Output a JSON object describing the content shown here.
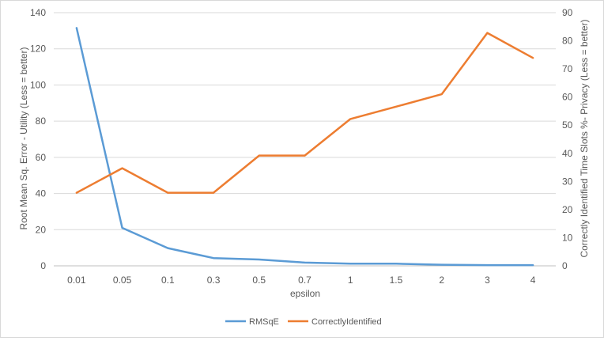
{
  "chart_data": {
    "type": "line",
    "categories": [
      "0.01",
      "0.05",
      "0.1",
      "0.3",
      "0.5",
      "0.7",
      "1",
      "1.5",
      "2",
      "3",
      "4"
    ],
    "xlabel": "epsilon",
    "ylabel": "Root Mean Sq. Error - Utility  (Less = better)",
    "ylabel_right": "Correctly Identified Time Slots %- Privacy  (Less = better)",
    "ylim": [
      0,
      140
    ],
    "ylim_right": [
      0,
      90
    ],
    "yticks": [
      0,
      20,
      40,
      60,
      80,
      100,
      120,
      140
    ],
    "yticks_right": [
      0,
      10,
      20,
      30,
      40,
      50,
      60,
      70,
      80,
      90
    ],
    "grid": true,
    "legend_position": "bottom",
    "series": [
      {
        "name": "RMSqE",
        "axis": "left",
        "color": "#5b9bd5",
        "values": [
          131.5,
          21,
          9.8,
          4.3,
          3.5,
          1.8,
          1.2,
          1.2,
          0.6,
          0.4,
          0.4
        ]
      },
      {
        "name": "CorrectlyIdentified",
        "axis": "right",
        "color": "#ed7d31",
        "values": [
          26,
          34.7,
          26,
          26,
          39.2,
          39.2,
          52.2,
          56.6,
          61,
          82.8,
          73.9
        ]
      }
    ]
  }
}
